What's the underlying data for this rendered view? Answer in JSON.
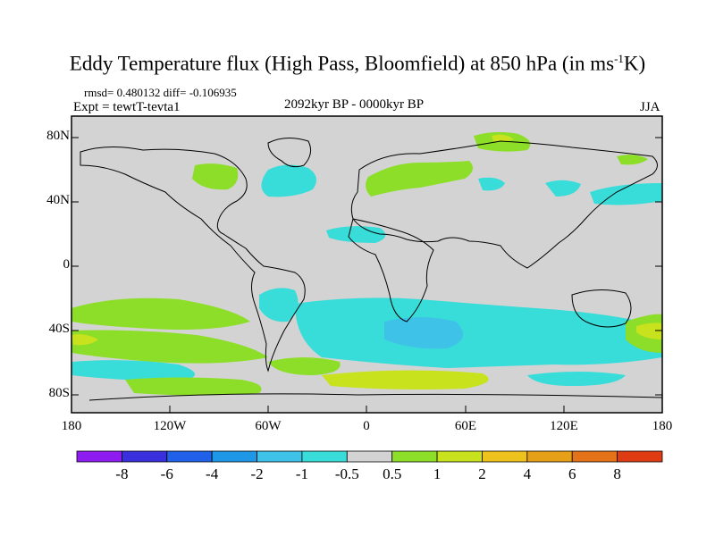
{
  "header": {
    "title_main": "Eddy Temperature flux (High Pass, Bloomfield) at 850 hPa (in ms",
    "title_sup": "-1",
    "title_end": "K)",
    "stats": "rmsd= 0.480132 diff= -0.106935",
    "experiment": "Expt = tewtT-tevta1",
    "period": "2092kyr BP - 0000kyr BP",
    "season": "JJA"
  },
  "axes": {
    "lat_labels": [
      "80N",
      "40N",
      "0",
      "40S",
      "80S"
    ],
    "lon_labels": [
      "180",
      "120W",
      "60W",
      "0",
      "60E",
      "120E",
      "180"
    ]
  },
  "colorbar": {
    "colors": [
      "#8e1cf0",
      "#3a2fdc",
      "#2160e8",
      "#1e98e6",
      "#3ec2e8",
      "#38dcd9",
      "#d3d3d3",
      "#8cde28",
      "#c8e21e",
      "#eec21c",
      "#e6a018",
      "#e47218",
      "#e03c14"
    ],
    "labels": [
      "-8",
      "-6",
      "-4",
      "-2",
      "-1",
      "-0.5",
      "0.5",
      "1",
      "2",
      "4",
      "6",
      "8"
    ]
  }
}
